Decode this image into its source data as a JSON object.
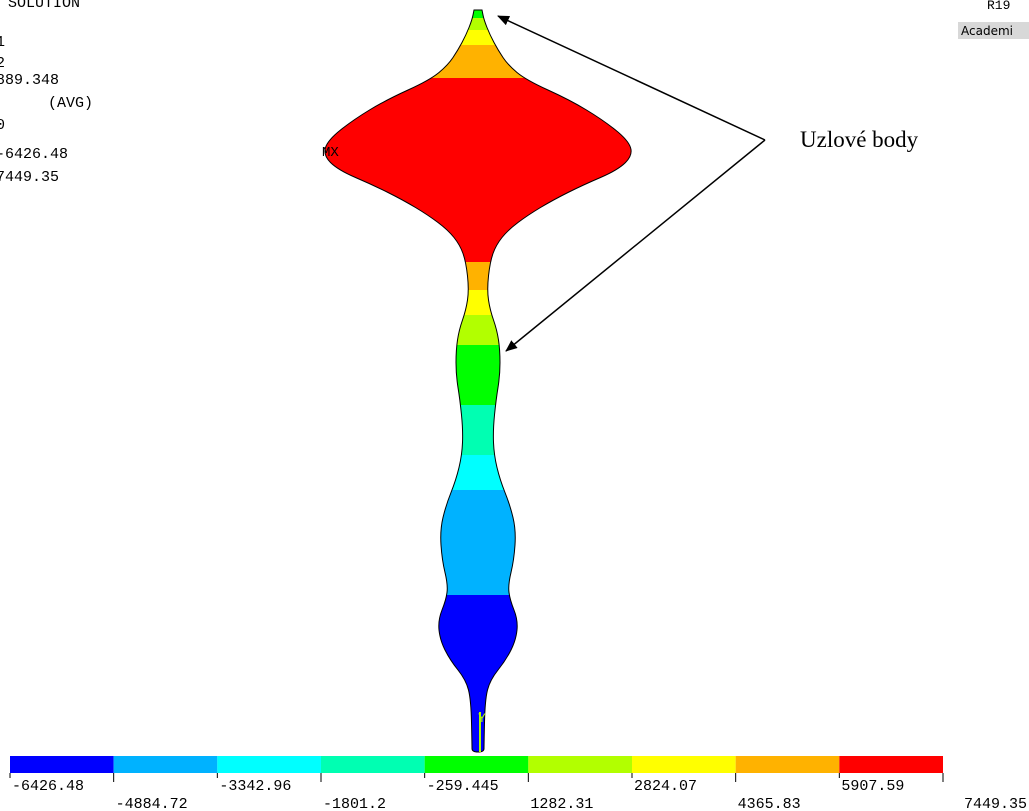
{
  "info_lines": [
    "SOLUTION",
    "1",
    "2",
    "889.348",
    "(AVG)",
    "0",
    "-6426.48",
    "7449.35"
  ],
  "corner": {
    "version": "R19",
    "license": "Academi"
  },
  "max_marker": "MX",
  "axis_label": "Y",
  "annotation": "Uzlové body",
  "legend": {
    "colors": [
      "#0000ff",
      "#00b2ff",
      "#00ffff",
      "#00ffb2",
      "#00ff00",
      "#b2ff00",
      "#ffff00",
      "#ffb200",
      "#ff0000"
    ],
    "labels": [
      "-6426.48",
      "-4884.72",
      "-3342.96",
      "-1801.2",
      "-259.445",
      "1282.31",
      "2824.07",
      "4365.83",
      "5907.59",
      "7449.35"
    ]
  }
}
